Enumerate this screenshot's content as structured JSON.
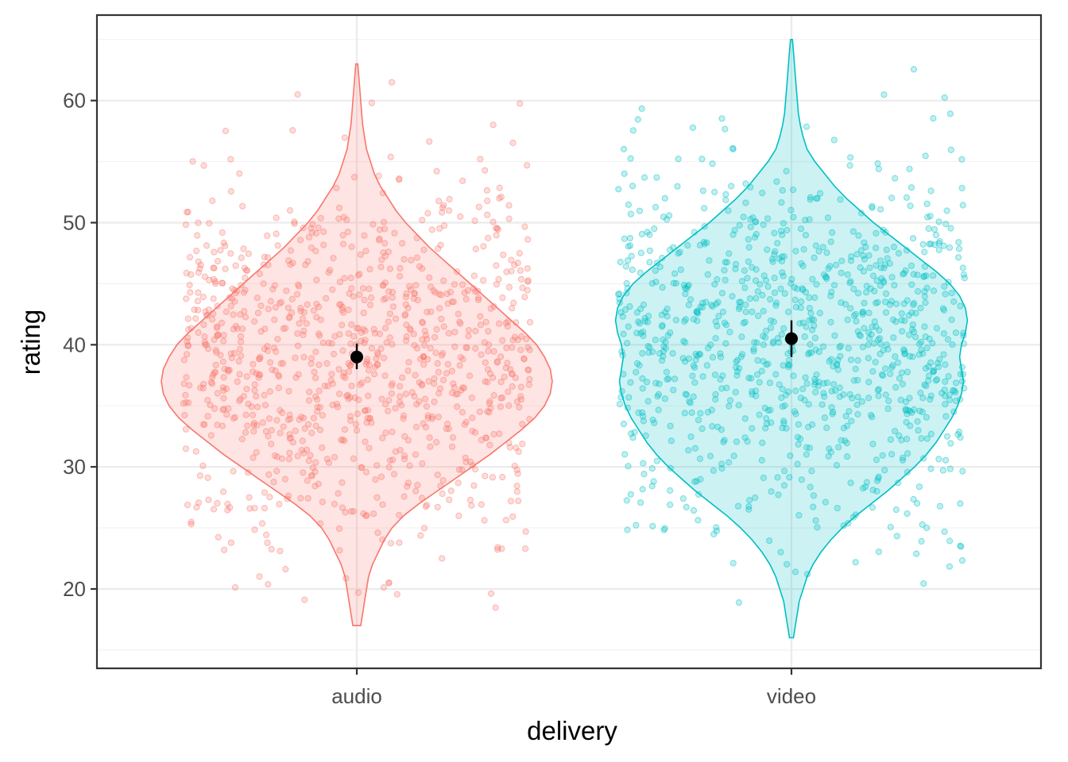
{
  "chart_data": {
    "type": "violin",
    "xlabel": "delivery",
    "ylabel": "rating",
    "categories": [
      "audio",
      "video"
    ],
    "ylim": [
      13.5,
      67
    ],
    "yticks": [
      20,
      30,
      40,
      50,
      60
    ],
    "grid": true,
    "legend": "none",
    "colors": {
      "audio": "#F8766D",
      "video": "#00BFC4",
      "summary": "#000000"
    },
    "series": [
      {
        "category": "audio",
        "mean": 39.0,
        "ci": [
          38.0,
          40.1
        ],
        "range": [
          17.0,
          63.0
        ],
        "density": [
          [
            17.0,
            0.02
          ],
          [
            18.0,
            0.03
          ],
          [
            19.0,
            0.04
          ],
          [
            20.0,
            0.05
          ],
          [
            21.0,
            0.06
          ],
          [
            22.0,
            0.08
          ],
          [
            23.0,
            0.11
          ],
          [
            24.0,
            0.14
          ],
          [
            25.0,
            0.18
          ],
          [
            26.0,
            0.24
          ],
          [
            27.0,
            0.32
          ],
          [
            28.0,
            0.41
          ],
          [
            29.0,
            0.5
          ],
          [
            30.0,
            0.59
          ],
          [
            31.0,
            0.68
          ],
          [
            32.0,
            0.76
          ],
          [
            33.0,
            0.84
          ],
          [
            34.0,
            0.91
          ],
          [
            35.0,
            0.96
          ],
          [
            36.0,
            0.99
          ],
          [
            37.0,
            1.0
          ],
          [
            38.0,
            0.99
          ],
          [
            39.0,
            0.96
          ],
          [
            40.0,
            0.92
          ],
          [
            41.0,
            0.86
          ],
          [
            42.0,
            0.79
          ],
          [
            43.0,
            0.72
          ],
          [
            44.0,
            0.65
          ],
          [
            45.0,
            0.58
          ],
          [
            46.0,
            0.51
          ],
          [
            47.0,
            0.44
          ],
          [
            48.0,
            0.37
          ],
          [
            49.0,
            0.31
          ],
          [
            50.0,
            0.25
          ],
          [
            51.0,
            0.2
          ],
          [
            52.0,
            0.16
          ],
          [
            53.0,
            0.12
          ],
          [
            54.0,
            0.09
          ],
          [
            55.0,
            0.07
          ],
          [
            56.0,
            0.05
          ],
          [
            57.0,
            0.04
          ],
          [
            58.0,
            0.03
          ],
          [
            59.0,
            0.025
          ],
          [
            60.0,
            0.02
          ],
          [
            61.0,
            0.015
          ],
          [
            62.0,
            0.01
          ],
          [
            63.0,
            0.005
          ]
        ],
        "n_points": 1000
      },
      {
        "category": "video",
        "mean": 40.5,
        "ci": [
          39.0,
          42.0
        ],
        "range": [
          16.0,
          65.0
        ],
        "density": [
          [
            16.0,
            0.01
          ],
          [
            17.0,
            0.02
          ],
          [
            18.0,
            0.03
          ],
          [
            19.0,
            0.04
          ],
          [
            20.0,
            0.06
          ],
          [
            21.0,
            0.08
          ],
          [
            22.0,
            0.11
          ],
          [
            23.0,
            0.15
          ],
          [
            24.0,
            0.2
          ],
          [
            25.0,
            0.26
          ],
          [
            26.0,
            0.33
          ],
          [
            27.0,
            0.41
          ],
          [
            28.0,
            0.49
          ],
          [
            29.0,
            0.56
          ],
          [
            30.0,
            0.63
          ],
          [
            31.0,
            0.69
          ],
          [
            32.0,
            0.74
          ],
          [
            33.0,
            0.78
          ],
          [
            34.0,
            0.82
          ],
          [
            35.0,
            0.85
          ],
          [
            36.0,
            0.87
          ],
          [
            37.0,
            0.88
          ],
          [
            38.0,
            0.87
          ],
          [
            39.0,
            0.86
          ],
          [
            40.0,
            0.87
          ],
          [
            41.0,
            0.89
          ],
          [
            42.0,
            0.9
          ],
          [
            43.0,
            0.89
          ],
          [
            44.0,
            0.86
          ],
          [
            45.0,
            0.81
          ],
          [
            46.0,
            0.74
          ],
          [
            47.0,
            0.66
          ],
          [
            48.0,
            0.58
          ],
          [
            49.0,
            0.5
          ],
          [
            50.0,
            0.42
          ],
          [
            51.0,
            0.35
          ],
          [
            52.0,
            0.28
          ],
          [
            53.0,
            0.22
          ],
          [
            54.0,
            0.17
          ],
          [
            55.0,
            0.12
          ],
          [
            56.0,
            0.08
          ],
          [
            57.0,
            0.06
          ],
          [
            58.0,
            0.045
          ],
          [
            59.0,
            0.035
          ],
          [
            60.0,
            0.03
          ],
          [
            61.0,
            0.025
          ],
          [
            62.0,
            0.02
          ],
          [
            63.0,
            0.015
          ],
          [
            64.0,
            0.01
          ],
          [
            65.0,
            0.005
          ]
        ],
        "n_points": 1000
      }
    ]
  }
}
